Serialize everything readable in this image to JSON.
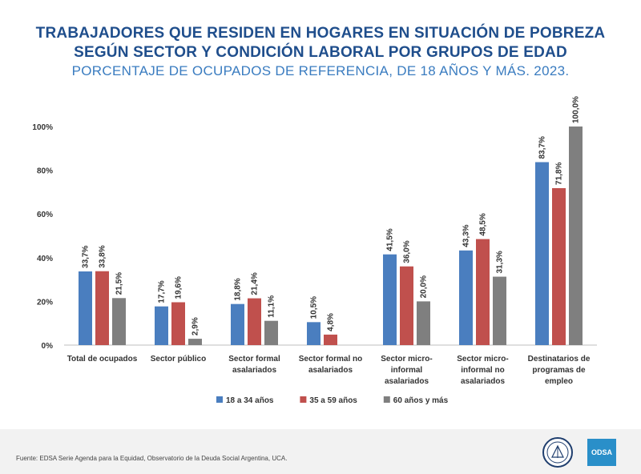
{
  "header": {
    "title_line1": "TRABAJADORES QUE RESIDEN EN HOGARES EN SITUACIÓN DE POBREZA",
    "title_line2": "SEGÚN SECTOR Y CONDICIÓN LABORAL POR GRUPOS DE EDAD",
    "subtitle": "PORCENTAJE DE OCUPADOS DE REFERENCIA, DE 18 AÑOS Y MÁS. 2023."
  },
  "chart_data": {
    "type": "bar",
    "categories": [
      [
        "Total de ocupados"
      ],
      [
        "Sector público"
      ],
      [
        "Sector formal",
        "asalariados"
      ],
      [
        "Sector formal no",
        "asalariados"
      ],
      [
        "Sector micro-",
        "informal",
        "asalariados"
      ],
      [
        "Sector micro-",
        "informal no",
        "asalariados"
      ],
      [
        "Destinatarios de",
        "programas de",
        "empleo"
      ]
    ],
    "series": [
      {
        "name": "18 a 34 años",
        "color": "#4a7ebf",
        "values": [
          33.7,
          17.7,
          18.8,
          10.5,
          41.5,
          43.3,
          83.7
        ],
        "labels": [
          "33,7%",
          "17,7%",
          "18,8%",
          "10,5%",
          "41,5%",
          "43,3%",
          "83,7%"
        ]
      },
      {
        "name": "35 a 59 años",
        "color": "#c0504d",
        "values": [
          33.8,
          19.6,
          21.4,
          4.8,
          36.0,
          48.5,
          71.8
        ],
        "labels": [
          "33,8%",
          "19,6%",
          "21,4%",
          "4,8%",
          "36,0%",
          "48,5%",
          "71,8%"
        ]
      },
      {
        "name": "60 años y más",
        "color": "#7f7f7f",
        "values": [
          21.5,
          2.9,
          11.1,
          null,
          20.0,
          31.3,
          100.0
        ],
        "labels": [
          "21,5%",
          "2,9%",
          "11,1%",
          "",
          "20,0%",
          "31,3%",
          "100,0%"
        ]
      }
    ],
    "yticks": [
      "0%",
      "20%",
      "40%",
      "60%",
      "80%",
      "100%"
    ],
    "ylim": [
      0,
      100
    ],
    "grid": false,
    "legend_position": "bottom"
  },
  "footer": {
    "source": "Fuente: EDSA Serie Agenda para la Equidad, Observatorio de la Deuda Social Argentina, UCA.",
    "logo_text": "ODSA"
  }
}
